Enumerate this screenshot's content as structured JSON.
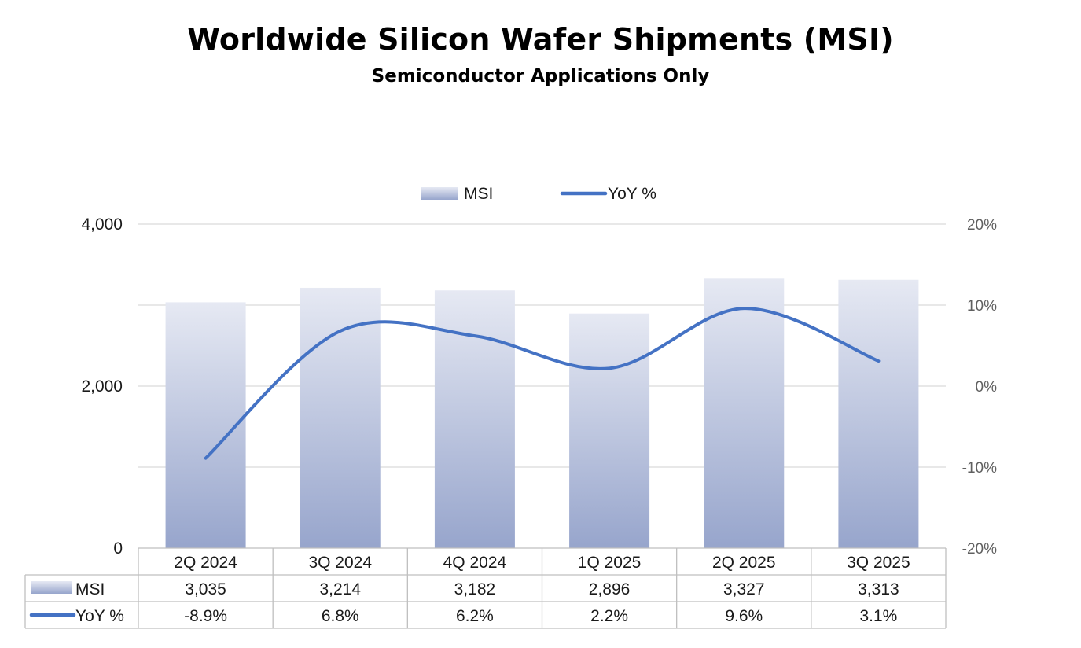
{
  "chart_data": {
    "type": "bar",
    "title": "Worldwide Silicon Wafer Shipments (MSI)",
    "subtitle": "Semiconductor Applications Only",
    "categories": [
      "2Q 2024",
      "3Q 2024",
      "4Q 2024",
      "1Q 2025",
      "2Q 2025",
      "3Q 2025"
    ],
    "series": [
      {
        "name": "MSI",
        "type": "bar",
        "axis": "left",
        "values": [
          3035,
          3214,
          3182,
          2896,
          3327,
          3313
        ],
        "labels": [
          "3,035",
          "3,214",
          "3,182",
          "2,896",
          "3,327",
          "3,313"
        ]
      },
      {
        "name": "YoY %",
        "type": "line",
        "axis": "right",
        "values": [
          -8.9,
          6.8,
          6.2,
          2.2,
          9.6,
          3.1
        ],
        "labels": [
          "-8.9%",
          "6.8%",
          "6.2%",
          "2.2%",
          "9.6%",
          "3.1%"
        ]
      }
    ],
    "left_axis": {
      "ylim": [
        0,
        4000
      ],
      "ticks": [
        0,
        2000,
        4000
      ],
      "tick_labels": [
        "0",
        "2,000",
        "4,000"
      ]
    },
    "right_axis": {
      "ylim": [
        -20,
        20
      ],
      "ticks": [
        20,
        10,
        0,
        -10,
        -20
      ],
      "tick_labels": [
        "20%",
        "10%",
        "0%",
        "-10%",
        "-20%"
      ]
    },
    "grid": true,
    "legend": "top-center",
    "data_table": true,
    "colors": {
      "bar_top": "#e6e9f3",
      "bar_bottom": "#97a5cc",
      "line": "#4472c4",
      "grid": "#d9d9d9",
      "table_border": "#bfbfbf"
    }
  }
}
